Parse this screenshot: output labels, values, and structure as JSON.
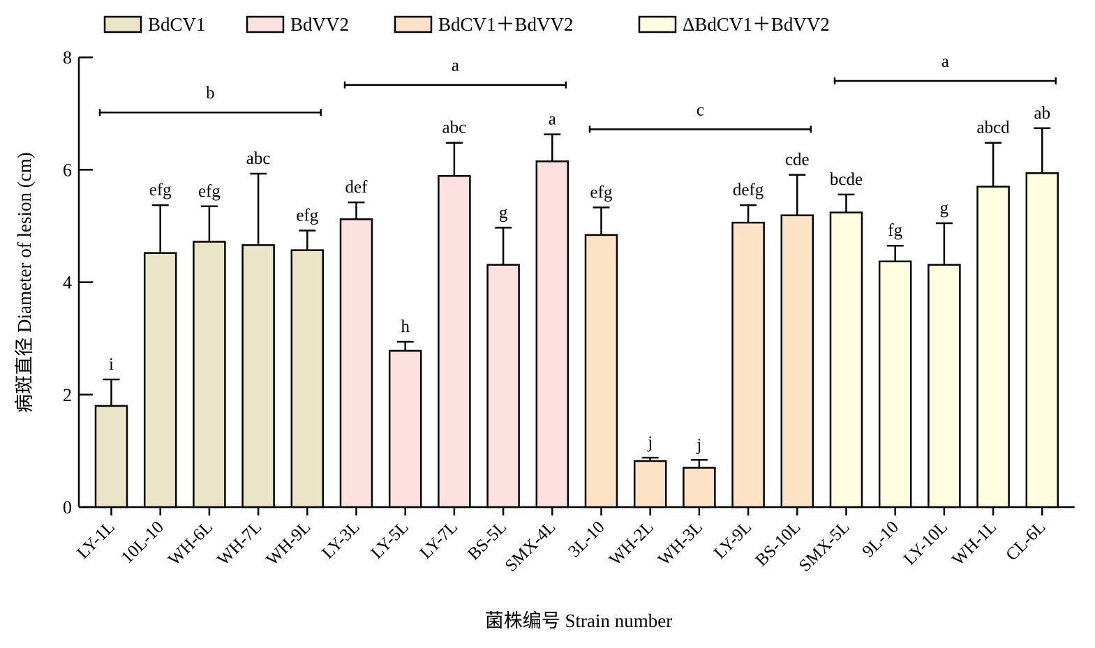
{
  "chart_data": {
    "type": "bar",
    "xlabel": "菌株编号 Strain number",
    "ylabel": "病斑直径 Diameter of lesion (cm)",
    "ylim": [
      0,
      8
    ],
    "yticks": [
      "0",
      "2",
      "4",
      "6",
      "8"
    ],
    "grid": false,
    "legend_position": "top",
    "groups": [
      {
        "name": "BdCV1",
        "color": "#ebe5c8"
      },
      {
        "name": "BdVV2",
        "color": "#fde0e0"
      },
      {
        "name": "BdCV1＋BdVV2",
        "color": "#fde3c6"
      },
      {
        "name": "ΔBdCV1＋BdVV2",
        "color": "#fefde0"
      }
    ],
    "categories": [
      "LY-1L",
      "10L-10",
      "WH-6L",
      "WH-7L",
      "WH-9L",
      "LY-3L",
      "LY-5L",
      "LY-7L",
      "BS-5L",
      "SMX-4L",
      "3L-10",
      "WH-2L",
      "WH-3L",
      "LY-9L",
      "BS-10L",
      "SMX-5L",
      "9L-10",
      "LY-10L",
      "WH-1L",
      "CL-6L"
    ],
    "bars": [
      {
        "category": "LY-1L",
        "group": 0,
        "value": 1.8,
        "error": 0.47,
        "label": "i"
      },
      {
        "category": "10L-10",
        "group": 0,
        "value": 4.52,
        "error": 0.85,
        "label": "efg"
      },
      {
        "category": "WH-6L",
        "group": 0,
        "value": 4.72,
        "error": 0.63,
        "label": "efg"
      },
      {
        "category": "WH-7L",
        "group": 0,
        "value": 4.66,
        "error": 1.27,
        "label": "abc"
      },
      {
        "category": "WH-9L",
        "group": 0,
        "value": 4.57,
        "error": 0.35,
        "label": "efg"
      },
      {
        "category": "LY-3L",
        "group": 1,
        "value": 5.12,
        "error": 0.3,
        "label": "def"
      },
      {
        "category": "LY-5L",
        "group": 1,
        "value": 2.78,
        "error": 0.16,
        "label": "h"
      },
      {
        "category": "LY-7L",
        "group": 1,
        "value": 5.89,
        "error": 0.59,
        "label": "abc"
      },
      {
        "category": "BS-5L",
        "group": 1,
        "value": 4.31,
        "error": 0.66,
        "label": "g"
      },
      {
        "category": "SMX-4L",
        "group": 1,
        "value": 6.15,
        "error": 0.48,
        "label": "a"
      },
      {
        "category": "3L-10",
        "group": 2,
        "value": 4.84,
        "error": 0.49,
        "label": "efg"
      },
      {
        "category": "WH-2L",
        "group": 2,
        "value": 0.82,
        "error": 0.06,
        "label": "j"
      },
      {
        "category": "WH-3L",
        "group": 2,
        "value": 0.7,
        "error": 0.14,
        "label": "j"
      },
      {
        "category": "LY-9L",
        "group": 2,
        "value": 5.06,
        "error": 0.31,
        "label": "defg"
      },
      {
        "category": "BS-10L",
        "group": 2,
        "value": 5.19,
        "error": 0.72,
        "label": "cde"
      },
      {
        "category": "SMX-5L",
        "group": 3,
        "value": 5.24,
        "error": 0.32,
        "label": "bcde"
      },
      {
        "category": "9L-10",
        "group": 3,
        "value": 4.37,
        "error": 0.28,
        "label": "fg"
      },
      {
        "category": "LY-10L",
        "group": 3,
        "value": 4.31,
        "error": 0.74,
        "label": "g"
      },
      {
        "category": "WH-1L",
        "group": 3,
        "value": 5.7,
        "error": 0.78,
        "label": "abcd"
      },
      {
        "category": "CL-6L",
        "group": 3,
        "value": 5.94,
        "error": 0.8,
        "label": "ab"
      }
    ],
    "group_significance": [
      {
        "from": 0,
        "to": 4,
        "y": 7.02,
        "label": "b"
      },
      {
        "from": 5,
        "to": 9,
        "y": 7.51,
        "label": "a"
      },
      {
        "from": 10,
        "to": 14,
        "y": 6.72,
        "label": "c"
      },
      {
        "from": 15,
        "to": 19,
        "y": 7.58,
        "label": "a"
      }
    ]
  }
}
